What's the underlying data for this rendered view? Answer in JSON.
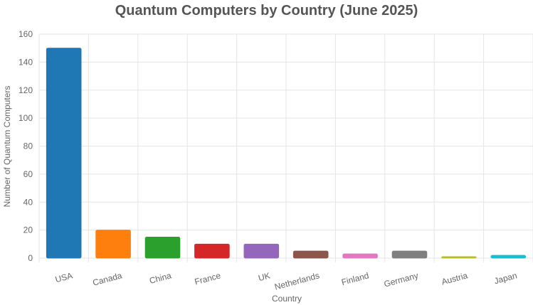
{
  "chart_data": {
    "type": "bar",
    "title": "Quantum Computers by Country (June 2025)",
    "xlabel": "Country",
    "ylabel": "Number of Quantum Computers",
    "categories": [
      "USA",
      "Canada",
      "China",
      "France",
      "UK",
      "Netherlands",
      "Finland",
      "Germany",
      "Austria",
      "Japan"
    ],
    "values": [
      150,
      20,
      15,
      10,
      10,
      5,
      3,
      5,
      1,
      2
    ],
    "ylim": [
      0,
      160
    ],
    "yticks": [
      0,
      20,
      40,
      60,
      80,
      100,
      120,
      140,
      160
    ],
    "grid": true,
    "legend": "none",
    "colors": [
      "#1f77b4",
      "#ff7f0e",
      "#2ca02c",
      "#d62728",
      "#9467bd",
      "#8c564b",
      "#e377c2",
      "#7f7f7f",
      "#bcbd22",
      "#17becf"
    ]
  }
}
